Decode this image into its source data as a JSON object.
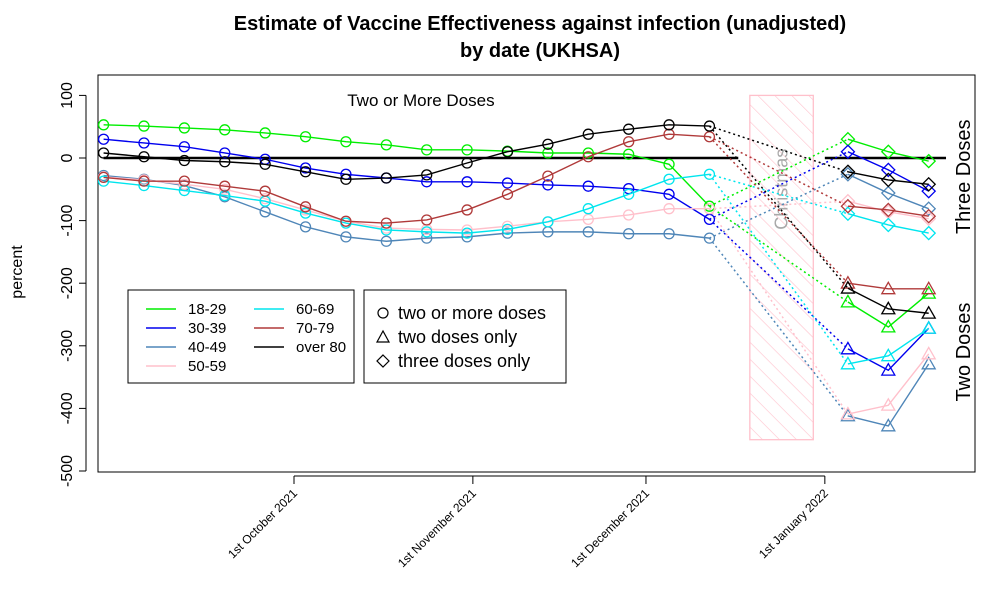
{
  "chart_data": {
    "type": "line",
    "title": "Estimate of Vaccine Effectiveness against infection (unadjusted)",
    "subtitle": "by date (UKHSA)",
    "xlabel": "",
    "ylabel": "percent",
    "ylim": [
      -500,
      100
    ],
    "yticks": [
      100,
      0,
      -100,
      -200,
      -300,
      -400,
      -500
    ],
    "xticks": [
      {
        "label": "1st October 2021",
        "day": 0
      },
      {
        "label": "1st November 2021",
        "day": 31
      },
      {
        "label": "1st December 2021",
        "day": 61
      },
      {
        "label": "1st January 2022",
        "day": 92
      }
    ],
    "xlim_days": [
      -34,
      118
    ],
    "grid": false,
    "reference_lines": [
      {
        "y": 0,
        "from_day": -33,
        "to_day": 77
      },
      {
        "y": 0,
        "from_day": 92,
        "to_day": 113
      }
    ],
    "christmas_band": {
      "label": "Christmas",
      "from_day": 79,
      "to_day": 90,
      "ymin": -450,
      "ymax": 100,
      "color": "#ffc0cb"
    },
    "annotations": [
      {
        "text": "Two or More Doses",
        "day": 22,
        "y": 83
      },
      {
        "text": "Three Doses",
        "orientation": "vertical",
        "y": -30
      },
      {
        "text": "Two Doses",
        "orientation": "vertical",
        "y": -310
      }
    ],
    "x_two_or_more": [
      -33,
      -26,
      -19,
      -12,
      -5,
      2,
      9,
      16,
      23,
      30,
      37,
      44,
      51,
      58,
      65,
      72
    ],
    "x_dose_split": [
      96,
      103,
      110
    ],
    "series": [
      {
        "name": "18-29",
        "color": "#00ee00",
        "two_or_more": [
          53,
          51,
          48,
          45,
          40,
          34,
          26,
          21,
          13,
          13,
          11,
          8,
          8,
          6,
          -10,
          -77
        ],
        "two_only": [
          -230,
          -270,
          -216
        ],
        "three_only": [
          30,
          10,
          -5
        ]
      },
      {
        "name": "30-39",
        "color": "#0000ee",
        "two_or_more": [
          30,
          24,
          18,
          8,
          -2,
          -16,
          -26,
          -32,
          -38,
          -38,
          -40,
          -43,
          -45,
          -49,
          -58,
          -98
        ],
        "two_only": [
          -305,
          -339,
          -272
        ],
        "three_only": [
          10,
          -19,
          -53
        ]
      },
      {
        "name": "40-49",
        "color": "#4f86b8",
        "two_or_more": [
          -28,
          -34,
          -44,
          -62,
          -86,
          -110,
          -126,
          -133,
          -128,
          -126,
          -120,
          -118,
          -118,
          -121,
          -121,
          -128
        ],
        "two_only": [
          -412,
          -428,
          -329
        ],
        "three_only": [
          -26,
          -56,
          -81
        ]
      },
      {
        "name": "50-59",
        "color": "#ffc0cb",
        "two_or_more": [
          -30,
          -35,
          -42,
          -50,
          -65,
          -83,
          -101,
          -112,
          -114,
          -115,
          -109,
          -102,
          -98,
          -91,
          -81,
          -81
        ],
        "two_only": [
          -409,
          -395,
          -313
        ],
        "three_only": [
          -69,
          -86,
          -97
        ]
      },
      {
        "name": "60-69",
        "color": "#00e5ee",
        "two_or_more": [
          -37,
          -44,
          -52,
          -60,
          -69,
          -88,
          -104,
          -115,
          -118,
          -120,
          -114,
          -102,
          -81,
          -58,
          -34,
          -26
        ],
        "two_only": [
          -329,
          -316,
          -272
        ],
        "three_only": [
          -89,
          -107,
          -120
        ]
      },
      {
        "name": "70-79",
        "color": "#b03a3a",
        "two_or_more": [
          -31,
          -37,
          -37,
          -45,
          -53,
          -78,
          -101,
          -104,
          -99,
          -83,
          -58,
          -29,
          2,
          26,
          38,
          34
        ],
        "two_only": [
          -200,
          -209,
          -209
        ],
        "three_only": [
          -77,
          -83,
          -93
        ]
      },
      {
        "name": "over 80",
        "color": "#000000",
        "two_or_more": [
          8,
          2,
          -4,
          -6,
          -10,
          -22,
          -34,
          -32,
          -27,
          -8,
          10,
          22,
          38,
          46,
          53,
          51
        ],
        "two_only": [
          -208,
          -241,
          -248
        ],
        "three_only": [
          -22,
          -35,
          -42
        ]
      }
    ],
    "legend_age": {
      "placement": "bottom-left",
      "columns": [
        [
          "18-29",
          "30-39",
          "40-49",
          "50-59"
        ],
        [
          "60-69",
          "70-79",
          "over 80"
        ]
      ]
    },
    "legend_shape": {
      "placement": "bottom-left",
      "items": [
        {
          "symbol": "circle",
          "label": "two or more doses"
        },
        {
          "symbol": "triangle",
          "label": "two doses only"
        },
        {
          "symbol": "diamond",
          "label": "three doses only"
        }
      ]
    }
  }
}
